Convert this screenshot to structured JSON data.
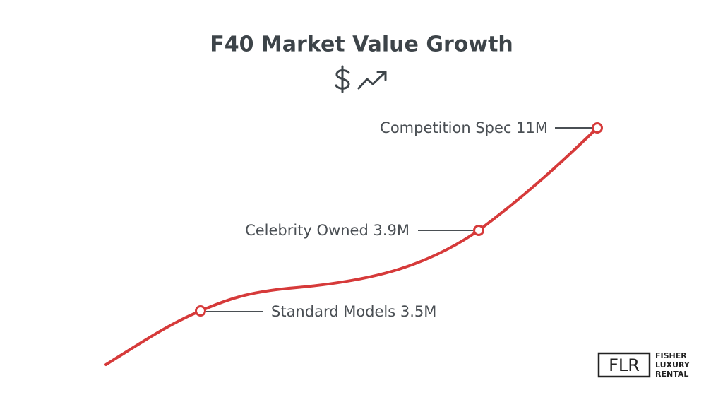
{
  "header": {
    "title": "F40 Market Value Growth"
  },
  "points": [
    {
      "label": "Standard Models 3.5M"
    },
    {
      "label": "Celebrity Owned 3.9M"
    },
    {
      "label": "Competition Spec 11M"
    }
  ],
  "logo": {
    "mark": "FLR",
    "lines": [
      "FISHER",
      "LUXURY",
      "RENTAL"
    ]
  }
}
